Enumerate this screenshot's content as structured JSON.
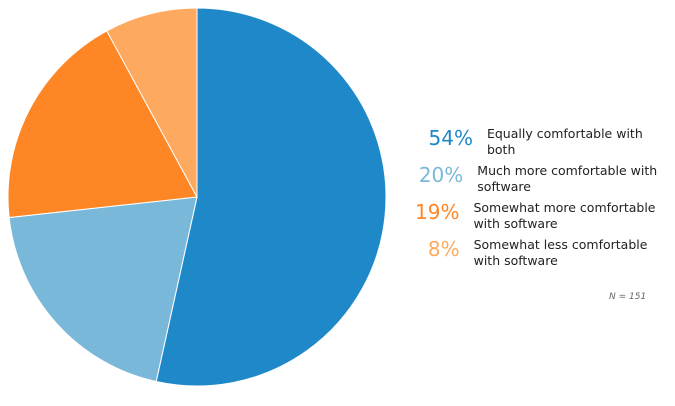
{
  "chart_data": {
    "type": "pie",
    "categories": [
      "Equally comfortable with both",
      "Much more comfortable with software",
      "Somewhat more comfortable with software",
      "Somewhat less comfortable with software"
    ],
    "values": [
      54,
      20,
      19,
      8
    ],
    "value_labels": [
      "54%",
      "20%",
      "19%",
      "8%"
    ],
    "colors": [
      "#1f88c8",
      "#7ab8d9",
      "#fe8625",
      "#fdaa60"
    ],
    "start": "top",
    "direction": "clockwise",
    "legend_position": "right",
    "note": "N = 151"
  }
}
